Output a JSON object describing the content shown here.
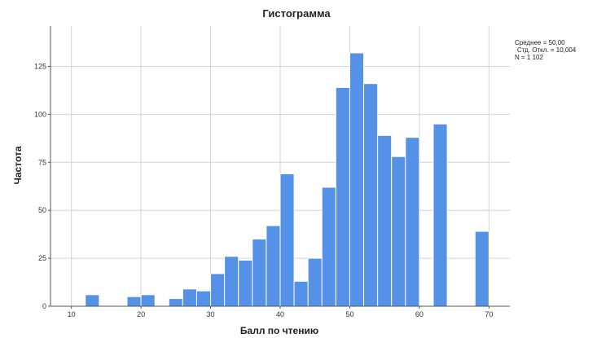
{
  "chart_data": {
    "type": "bar",
    "title": "Гистограмма",
    "xlabel": "Балл по чтению",
    "ylabel": "Частота",
    "xlim": [
      7,
      73
    ],
    "ylim": [
      0,
      146
    ],
    "xticks": [
      10,
      20,
      30,
      40,
      50,
      60,
      70
    ],
    "yticks": [
      0,
      25,
      50,
      75,
      100,
      125
    ],
    "xtick_labels": [
      "10",
      "20",
      "30",
      "40",
      "50",
      "60",
      "70"
    ],
    "ytick_labels": [
      "0",
      "25",
      "50",
      "75",
      "100",
      "125"
    ],
    "grid": true,
    "bar_color": "#5591e6",
    "bins": [
      {
        "start": 12,
        "end": 14,
        "count": 6
      },
      {
        "start": 18,
        "end": 20,
        "count": 5
      },
      {
        "start": 20,
        "end": 22,
        "count": 6
      },
      {
        "start": 24,
        "end": 26,
        "count": 4
      },
      {
        "start": 26,
        "end": 28,
        "count": 9
      },
      {
        "start": 28,
        "end": 30,
        "count": 8
      },
      {
        "start": 30,
        "end": 32,
        "count": 17
      },
      {
        "start": 32,
        "end": 34,
        "count": 26
      },
      {
        "start": 34,
        "end": 36,
        "count": 24
      },
      {
        "start": 36,
        "end": 38,
        "count": 35
      },
      {
        "start": 38,
        "end": 40,
        "count": 42
      },
      {
        "start": 40,
        "end": 42,
        "count": 69
      },
      {
        "start": 42,
        "end": 44,
        "count": 13
      },
      {
        "start": 44,
        "end": 46,
        "count": 25
      },
      {
        "start": 46,
        "end": 48,
        "count": 62
      },
      {
        "start": 48,
        "end": 50,
        "count": 114
      },
      {
        "start": 50,
        "end": 52,
        "count": 132
      },
      {
        "start": 52,
        "end": 54,
        "count": 116
      },
      {
        "start": 54,
        "end": 56,
        "count": 89
      },
      {
        "start": 56,
        "end": 58,
        "count": 78
      },
      {
        "start": 58,
        "end": 60,
        "count": 88
      },
      {
        "start": 62,
        "end": 64,
        "count": 95
      },
      {
        "start": 68,
        "end": 70,
        "count": 39
      }
    ],
    "stats": {
      "mean": "Среднее = 50,00",
      "sd": "Стд. Откл. = 10,004",
      "n": "N = 1 102"
    }
  }
}
